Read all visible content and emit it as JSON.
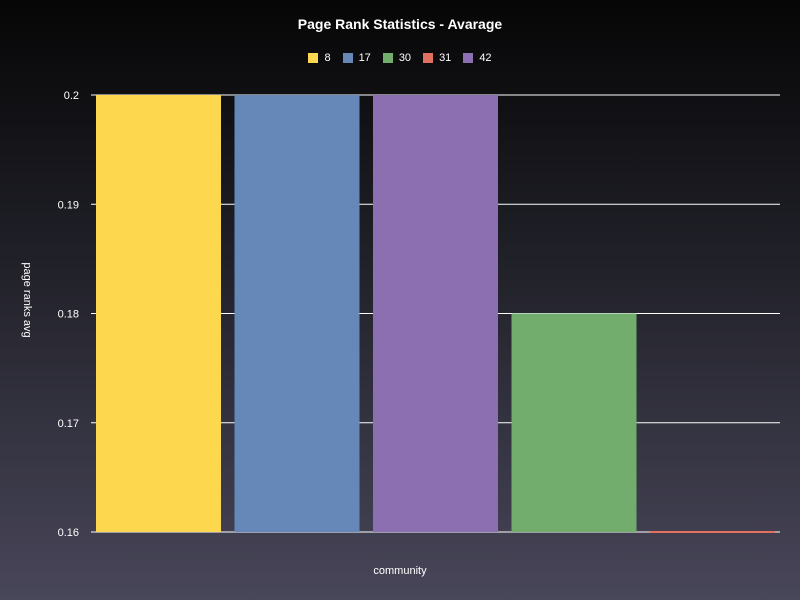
{
  "chart_data": {
    "type": "bar",
    "title": "Page Rank Statistics - Avarage",
    "xlabel": "community",
    "ylabel": "page ranks avg",
    "ylim": [
      0.16,
      0.2
    ],
    "yticks": [
      "0.16",
      "0.17",
      "0.18",
      "0.19",
      "0.2"
    ],
    "legend_position": "top-center",
    "grid": "horizontal",
    "series": [
      {
        "name": "8",
        "value": 0.2,
        "color": "#fdd84e"
      },
      {
        "name": "17",
        "value": 0.2,
        "color": "#6688b8"
      },
      {
        "name": "42",
        "value": 0.2,
        "color": "#8c6fb0"
      },
      {
        "name": "30",
        "value": 0.18,
        "color": "#72ad6d"
      },
      {
        "name": "31",
        "value": 0.16,
        "color": "#e0705f"
      }
    ],
    "legend": [
      {
        "label": "8",
        "color": "#fdd84e"
      },
      {
        "label": "17",
        "color": "#6688b8"
      },
      {
        "label": "30",
        "color": "#72ad6d"
      },
      {
        "label": "31",
        "color": "#e0705f"
      },
      {
        "label": "42",
        "color": "#8c6fb0"
      }
    ]
  }
}
